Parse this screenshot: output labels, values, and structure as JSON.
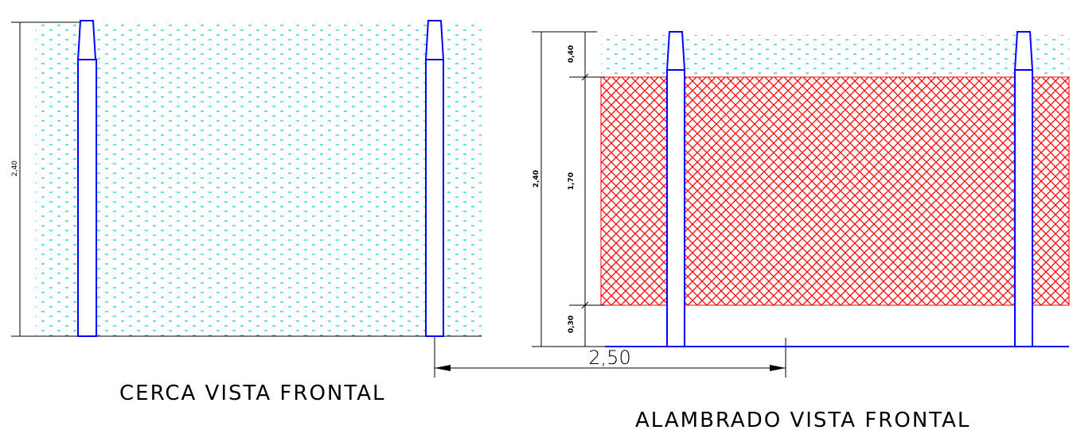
{
  "colors": {
    "post_stroke": "#0000ff",
    "dot_fill": "#00c8e0",
    "mesh_stroke": "#ff0000",
    "line": "#000000",
    "ground": "#0000ff"
  },
  "left_view": {
    "title": "CERCA VISTA FRONTAL",
    "height_label": "2,40"
  },
  "right_view": {
    "title": "ALAMBRADO VISTA FRONTAL",
    "total_height_label": "2,40",
    "top_segment_label": "0,40",
    "mesh_segment_label": "1,70",
    "bottom_segment_label": "0,30"
  },
  "spacing_label": "2,50"
}
